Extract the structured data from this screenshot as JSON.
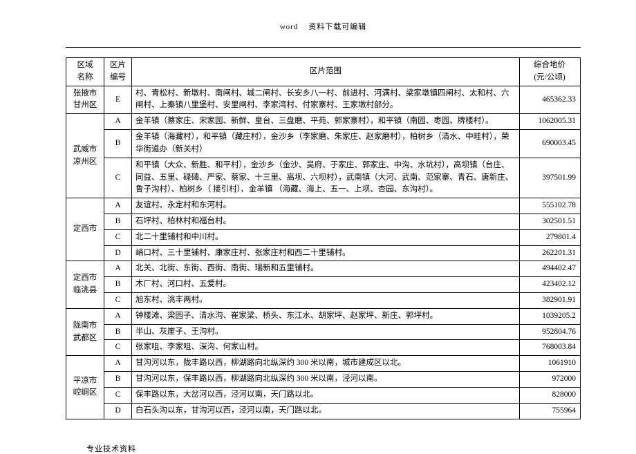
{
  "header_left": "word",
  "header_right": "资料下载可编辑",
  "footer": "专业技术资料",
  "columns": {
    "region": "区域\n名称",
    "code": "区片\n编号",
    "scope": "区片范围",
    "price": "综合地价\n(元/公顷)"
  },
  "groups": [
    {
      "region": "张掖市\n甘州区",
      "rows": [
        {
          "code": "E",
          "scope": "村、青松村、新墩村、南闸村、城二闸村、长安乡八一村、前进村、河满村、梁家墩镇四闸村、太和村、六闸村、上秦镇八里堡村、安里闸村、李家湾村、付家寨村、王家墩村部分。",
          "price": "465362.33"
        }
      ]
    },
    {
      "region": "武威市\n凉州区",
      "rows": [
        {
          "code": "A",
          "scope": "金羊镇（蔡家庄、宋家园、新鲜、皇台、三盘磨、平苑、郭家寨村），和平镇（南园、枣园、牌楼村）。",
          "price": "1062005.31"
        },
        {
          "code": "B",
          "scope": "金羊镇（海藏村），和平镇（藏庄村），金沙乡（李家磨、朱家庄、赵家磨村），柏树乡（清水、中畦村），荣华街道办（新关村）",
          "price": "690003.45"
        },
        {
          "code": "C",
          "scope": "和平镇（大众、新胜、和平村），金沙乡（金沙、吴府、于家庄、郭家庄、中沟、水坑村），高坝镇（台庄、同益、五里、碌碡、严家、蔡家、十三里、高坝、六坝村），武南镇（大河、武南、范家寨、青石、唐新庄、鲁子沟村）、柏树乡（ 接引村）、金羊镇 （海藏、海上、五一、上坝、杏园、东沟村）。",
          "price": "397501.99"
        }
      ]
    },
    {
      "region": "定西市",
      "rows": [
        {
          "code": "A",
          "scope": "友谊村、永定村和东河村。",
          "price": "555102.78"
        },
        {
          "code": "B",
          "scope": "石坪村、柏林村和福台村。",
          "price": "302501.51"
        },
        {
          "code": "C",
          "scope": "北二十里铺村和中川村。",
          "price": "279801.4"
        },
        {
          "code": "D",
          "scope": "峭口村、三十里铺村、康家庄村、张家庄村和西二十里铺村。",
          "price": "262201.31"
        }
      ]
    },
    {
      "region": "定西市\n临洮县",
      "rows": [
        {
          "code": "A",
          "scope": "北关、北街、东街、西街、南街、瑞新和五里铺村。",
          "price": "494402.47"
        },
        {
          "code": "B",
          "scope": "木厂村、河口村、五爱村。",
          "price": "423402.12"
        },
        {
          "code": "C",
          "scope": "旭东村、洮丰两村。",
          "price": "382901.91"
        }
      ]
    },
    {
      "region": "陇南市\n武都区",
      "rows": [
        {
          "code": "A",
          "scope": "钟楼滩、梁园子、清水沟、崔家梁、桥头、东江水、胡家坪、赵家坪、新庄、郭坪村。",
          "price": "1039205.2"
        },
        {
          "code": "B",
          "scope": "半山、灰崖子、王沟村。",
          "price": "952804.76"
        },
        {
          "code": "C",
          "scope": "张家咀、李家咀、深沟、何家山村。",
          "price": "768003.84"
        }
      ]
    },
    {
      "region": "平凉市\n崆峒区",
      "rows": [
        {
          "code": "A",
          "scope": "甘沟河以东，陇丰路以西，柳湖路向北纵深约 300 米以南，城市建成区以北。",
          "price": "1061910"
        },
        {
          "code": "B",
          "scope": "甘沟河以东，保丰路以西，柳湖路向北纵深约 300 米以南，泾河以南。",
          "price": "972000"
        },
        {
          "code": "C",
          "scope": "保丰路以东，大岔河以西，泾河以南，天门路以北。",
          "price": "828000"
        },
        {
          "code": "D",
          "scope": "白石头沟以东，甘沟河以西，泾河以南，天门路以北。",
          "price": "755964"
        }
      ]
    }
  ]
}
